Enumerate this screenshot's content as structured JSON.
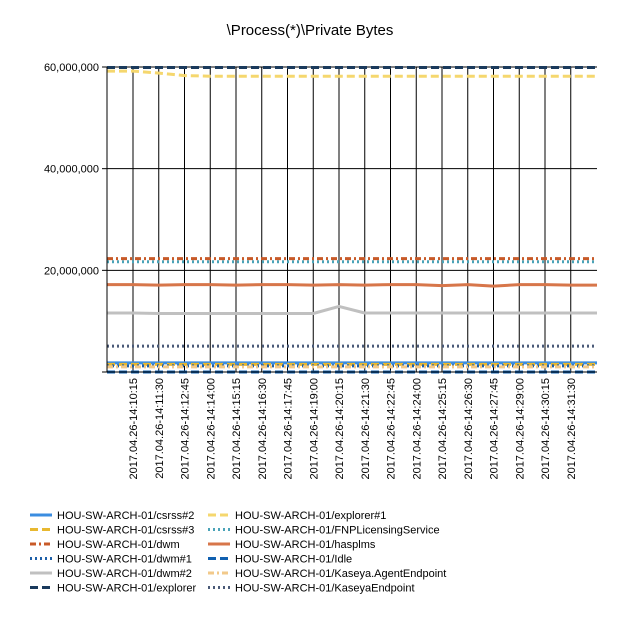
{
  "chart_data": {
    "type": "line",
    "title": "\\Process(*)\\Private Bytes",
    "xlabel": "",
    "ylabel": "",
    "ylim": [
      0,
      60000000
    ],
    "y_ticks": [
      "60,000,000",
      "40,000,000",
      "20,000,000"
    ],
    "y_tick_values": [
      60000000,
      40000000,
      20000000
    ],
    "grid": "vertical",
    "legend_position": "bottom",
    "categories": [
      "2017.04.26-14:10:15",
      "2017.04.26-14:11:30",
      "2017.04.26-14:12:45",
      "2017.04.26-14:14:00",
      "2017.04.26-14:15:15",
      "2017.04.26-14:16:30",
      "2017.04.26-14:17:45",
      "2017.04.26-14:19:00",
      "2017.04.26-14:20:15",
      "2017.04.26-14:21:30",
      "2017.04.26-14:22:45",
      "2017.04.26-14:24:00",
      "2017.04.26-14:25:15",
      "2017.04.26-14:26:30",
      "2017.04.26-14:27:45",
      "2017.04.26-14:29:00",
      "2017.04.26-14:30:15",
      "2017.04.26-14:31:30"
    ],
    "series": [
      {
        "name": "HOU-SW-ARCH-01/csrss#2",
        "color": "#3b8de0",
        "dash": "solid",
        "values": [
          1800000,
          1800000,
          1800000,
          1800000,
          1800000,
          1800000,
          1800000,
          1800000,
          1800000,
          1800000,
          1800000,
          1800000,
          1800000,
          1800000,
          1800000,
          1800000,
          1800000,
          1800000
        ]
      },
      {
        "name": "HOU-SW-ARCH-01/explorer#1",
        "color": "#f5d76e",
        "dash": "dashed",
        "values": [
          59200000,
          58800000,
          58300000,
          58200000,
          58200000,
          58200000,
          58200000,
          58200000,
          58200000,
          58200000,
          58200000,
          58200000,
          58200000,
          58200000,
          58200000,
          58200000,
          58200000,
          58200000
        ]
      },
      {
        "name": "HOU-SW-ARCH-01/csrss#3",
        "color": "#e8b830",
        "dash": "dashed",
        "values": [
          1500000,
          1500000,
          1500000,
          1500000,
          1500000,
          1500000,
          1500000,
          1500000,
          1500000,
          1500000,
          1500000,
          1500000,
          1500000,
          1500000,
          1500000,
          1500000,
          1500000,
          1500000
        ]
      },
      {
        "name": "HOU-SW-ARCH-01/FNPLicensingService",
        "color": "#4aa3b8",
        "dash": "dotted",
        "values": [
          21700000,
          21700000,
          21700000,
          21700000,
          21700000,
          21700000,
          21700000,
          21700000,
          21700000,
          21700000,
          21700000,
          21700000,
          21700000,
          21700000,
          21700000,
          21700000,
          21700000,
          21700000
        ]
      },
      {
        "name": "HOU-SW-ARCH-01/dwm",
        "color": "#c85a28",
        "dash": "dashdot",
        "values": [
          22300000,
          22300000,
          22300000,
          22300000,
          22300000,
          22300000,
          22300000,
          22300000,
          22300000,
          22300000,
          22300000,
          22300000,
          22300000,
          22300000,
          22300000,
          22300000,
          22300000,
          22300000
        ]
      },
      {
        "name": "HOU-SW-ARCH-01/hasplms",
        "color": "#d7764a",
        "dash": "solid",
        "values": [
          17200000,
          17100000,
          17200000,
          17200000,
          17100000,
          17200000,
          17200000,
          17100000,
          17200000,
          17100000,
          17200000,
          17200000,
          17000000,
          17200000,
          16900000,
          17200000,
          17200000,
          17100000
        ]
      },
      {
        "name": "HOU-SW-ARCH-01/dwm#1",
        "color": "#1d5fa8",
        "dash": "dotted",
        "values": [
          1200000,
          1200000,
          1200000,
          1200000,
          1200000,
          1200000,
          1200000,
          1200000,
          1200000,
          1200000,
          1200000,
          1200000,
          1200000,
          1200000,
          1200000,
          1200000,
          1200000,
          1200000
        ]
      },
      {
        "name": "HOU-SW-ARCH-01/Idle",
        "color": "#1060b0",
        "dash": "dashed",
        "values": [
          0,
          0,
          0,
          0,
          0,
          0,
          0,
          0,
          0,
          0,
          0,
          0,
          0,
          0,
          0,
          0,
          0,
          0
        ]
      },
      {
        "name": "HOU-SW-ARCH-01/dwm#2",
        "color": "#c0c0c0",
        "dash": "solid",
        "values": [
          11600000,
          11500000,
          11500000,
          11500000,
          11500000,
          11500000,
          11500000,
          11500000,
          12900000,
          11600000,
          11600000,
          11600000,
          11600000,
          11600000,
          11600000,
          11600000,
          11600000,
          11600000
        ]
      },
      {
        "name": "HOU-SW-ARCH-01/Kaseya.AgentEndpoint",
        "color": "#f2c98a",
        "dash": "dashdot",
        "values": [
          1000000,
          1000000,
          1000000,
          1000000,
          1000000,
          1000000,
          1000000,
          1000000,
          1000000,
          1000000,
          1000000,
          1000000,
          1000000,
          1000000,
          1000000,
          1000000,
          1000000,
          1000000
        ]
      },
      {
        "name": "HOU-SW-ARCH-01/explorer",
        "color": "#1a3a5c",
        "dash": "dashed",
        "values": [
          59900000,
          59900000,
          59900000,
          59900000,
          59900000,
          59900000,
          59900000,
          59900000,
          59900000,
          59900000,
          59900000,
          59900000,
          59900000,
          59900000,
          59900000,
          59900000,
          59900000,
          59900000
        ]
      },
      {
        "name": "HOU-SW-ARCH-01/KaseyaEndpoint",
        "color": "#4a5a78",
        "dash": "dotted",
        "values": [
          5100000,
          5100000,
          5100000,
          5100000,
          5100000,
          5100000,
          5100000,
          5100000,
          5100000,
          5100000,
          5100000,
          5100000,
          5100000,
          5100000,
          5100000,
          5100000,
          5100000,
          5100000
        ]
      }
    ]
  }
}
